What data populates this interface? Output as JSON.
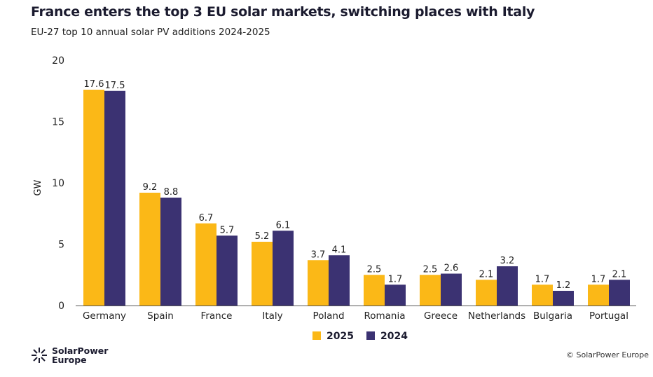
{
  "header": {
    "title": "France enters the top 3 EU solar markets, switching places with Italy",
    "subtitle": "EU-27 top 10 annual solar PV additions 2024-2025"
  },
  "chart_data": {
    "type": "bar",
    "title": "France enters the top 3 EU solar markets, switching places with Italy",
    "subtitle": "EU-27 top 10 annual solar PV additions 2024-2025",
    "xlabel": "",
    "ylabel": "GW",
    "ylim": [
      0,
      20
    ],
    "yticks": [
      0,
      5,
      10,
      15,
      20
    ],
    "grid": false,
    "legend": "bottom",
    "categories": [
      "Germany",
      "Spain",
      "France",
      "Italy",
      "Poland",
      "Romania",
      "Greece",
      "Netherlands",
      "Bulgaria",
      "Portugal"
    ],
    "series": [
      {
        "name": "2025",
        "color": "#FBB817",
        "values": [
          17.6,
          9.2,
          6.7,
          5.2,
          3.7,
          2.5,
          2.5,
          2.1,
          1.7,
          1.7
        ]
      },
      {
        "name": "2024",
        "color": "#3B3272",
        "values": [
          17.5,
          8.8,
          5.7,
          6.1,
          4.1,
          1.7,
          2.6,
          3.2,
          1.2,
          2.1
        ]
      }
    ]
  },
  "footer": {
    "logo_text": "SolarPower Europe",
    "logo_line1": "SolarPower",
    "logo_line2": "Europe",
    "credit": "© SolarPower Europe"
  }
}
